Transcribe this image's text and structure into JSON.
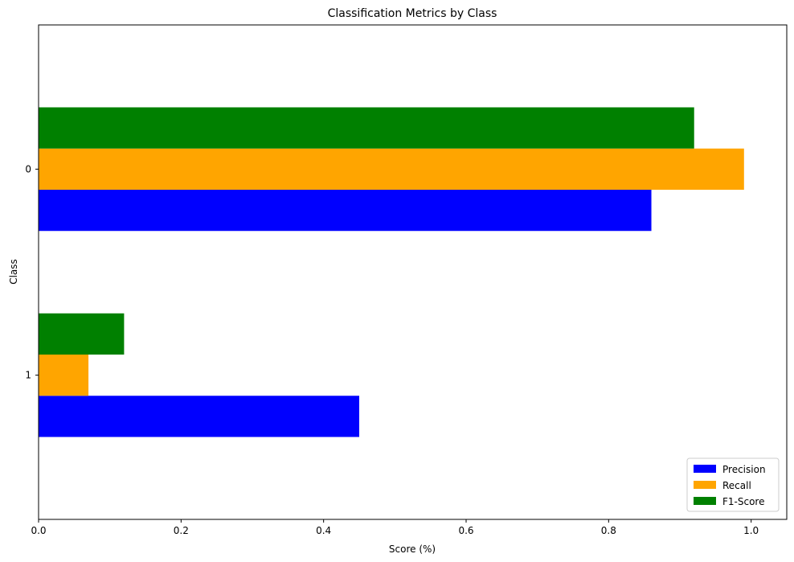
{
  "chart_data": {
    "type": "bar",
    "orientation": "horizontal",
    "title": "Classification Metrics by Class",
    "xlabel": "Score (%)",
    "ylabel": "Class",
    "categories": [
      "0",
      "1"
    ],
    "series": [
      {
        "name": "Precision",
        "color": "#0000ff",
        "values": [
          0.86,
          0.45
        ]
      },
      {
        "name": "Recall",
        "color": "#ffa500",
        "values": [
          0.99,
          0.07
        ]
      },
      {
        "name": "F1-Score",
        "color": "#008000",
        "values": [
          0.92,
          0.12
        ]
      }
    ],
    "xlim": [
      0,
      1.05
    ],
    "xticks": [
      0.0,
      0.2,
      0.4,
      0.6,
      0.8,
      1.0
    ],
    "xtick_labels": [
      "0.0",
      "0.2",
      "0.4",
      "0.6",
      "0.8",
      "1.0"
    ],
    "grid": false,
    "legend_position": "bottom-right"
  }
}
